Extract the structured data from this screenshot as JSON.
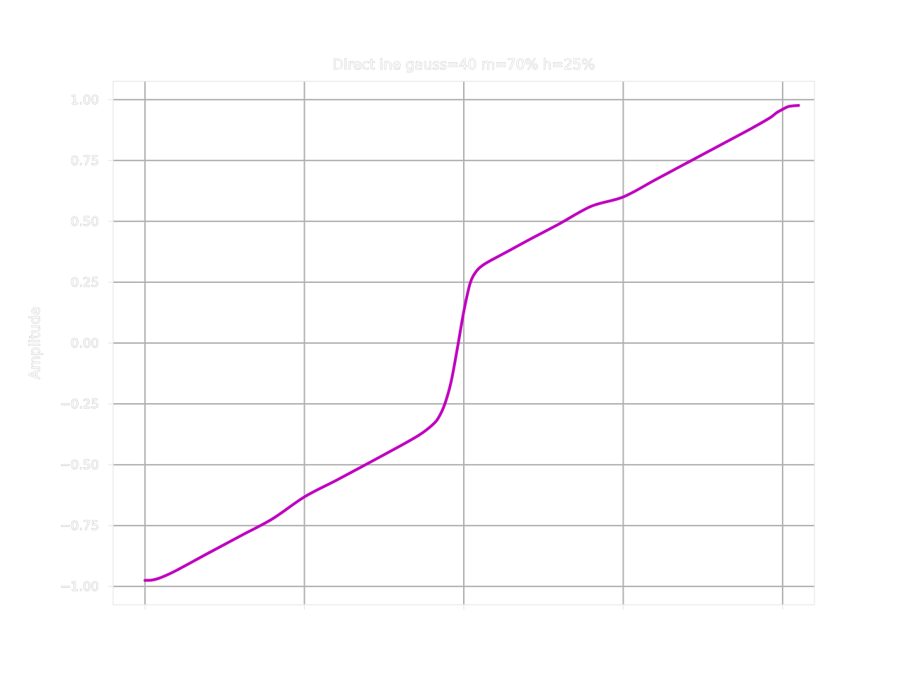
{
  "chart_data": {
    "type": "line",
    "title": "Direct  ine gauss=40 m=70% h=25%",
    "xlabel": "",
    "ylabel": "Amplitude",
    "xlim": [
      -0.05,
      1.05
    ],
    "ylim": [
      -1.075,
      1.075
    ],
    "xticks": [
      0,
      0.25,
      0.5,
      0.75,
      1.0
    ],
    "yticks": [
      -1.0,
      -0.75,
      -0.5,
      -0.25,
      0.0,
      0.25,
      0.5,
      0.75,
      1.0
    ],
    "ytick_labels": [
      "−1.00",
      "−0.75",
      "−0.50",
      "−0.25",
      "0.00",
      "0.25",
      "0.50",
      "0.75",
      "1.00"
    ],
    "grid": true,
    "series": [
      {
        "color": "#bf00bf",
        "x": [
          0.0,
          0.01,
          0.02,
          0.03,
          0.05,
          0.1,
          0.15,
          0.2,
          0.25,
          0.3,
          0.35,
          0.4,
          0.43,
          0.45,
          0.46,
          0.47,
          0.48,
          0.49,
          0.5,
          0.51,
          0.52,
          0.53,
          0.54,
          0.55,
          0.57,
          0.6,
          0.65,
          0.7,
          0.75,
          0.8,
          0.85,
          0.9,
          0.95,
          0.98,
          0.99,
          1.0,
          1.01,
          1.025
        ],
        "y": [
          -0.975,
          -0.974,
          -0.968,
          -0.958,
          -0.933,
          -0.862,
          -0.792,
          -0.722,
          -0.632,
          -0.564,
          -0.494,
          -0.423,
          -0.378,
          -0.338,
          -0.308,
          -0.252,
          -0.16,
          -0.02,
          0.13,
          0.246,
          0.296,
          0.32,
          0.336,
          0.35,
          0.378,
          0.421,
          0.49,
          0.562,
          0.6,
          0.67,
          0.74,
          0.81,
          0.88,
          0.925,
          0.945,
          0.96,
          0.972,
          0.976
        ]
      }
    ]
  }
}
